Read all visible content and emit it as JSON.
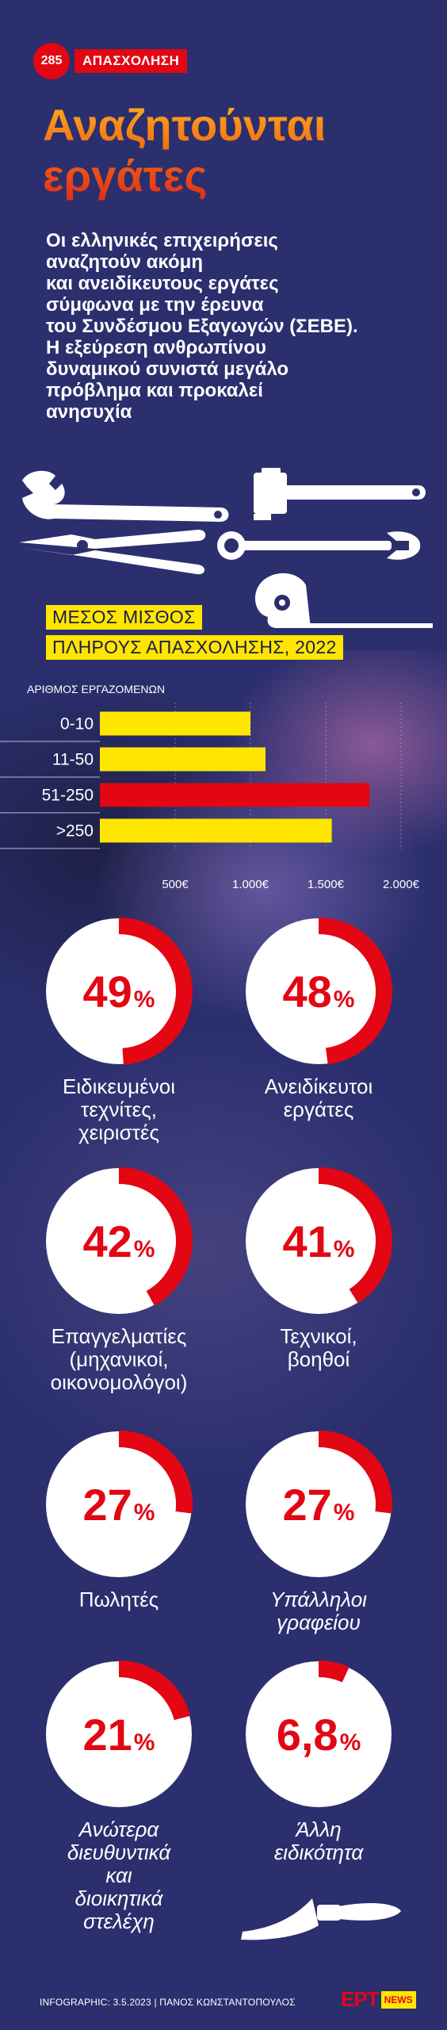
{
  "header": {
    "badge_number": "285",
    "badge_label": "ΑΠΑΣΧΟΛΗΣΗ",
    "title_line1": "Αναζητούνται",
    "title_line2": "εργάτες",
    "intro_lines": [
      "Οι ελληνικές επιχειρήσεις",
      "αναζητούν ακόμη",
      "και ανειδίκευτους εργάτες",
      "σύμφωνα με την έρευνα",
      "του Συνδέσμου Εξαγωγών (ΣΕΒΕ).",
      "Η εξεύρεση ανθρωπίνου",
      "δυναμικού συνιστά μεγάλο",
      "πρόβλημα και προκαλεί",
      "ανησυχία"
    ]
  },
  "icons": [
    "wrench-icon",
    "pipe-wrench-icon",
    "pliers-icon",
    "combination-wrench-icon",
    "tape-measure-icon",
    "putty-knife-icon"
  ],
  "colors": {
    "background": "#2b2f6e",
    "accent_red": "#e30613",
    "accent_yellow": "#ffe600"
  },
  "chart_data": [
    {
      "type": "bar",
      "title_line1": "ΜΕΣΟΣ ΜΙΣΘΟΣ",
      "title_line2": "ΠΛΗΡΟΥΣ ΑΠΑΣΧΟΛΗΣΗΣ, 2022",
      "ylabel": "ΑΡΙΘΜΟΣ ΕΡΓΑΖΟΜΕΝΩΝ",
      "orientation": "horizontal",
      "categories": [
        "0-10",
        "11-50",
        "51-250",
        ">250"
      ],
      "values": [
        1000,
        1100,
        1790,
        1540
      ],
      "highlight_index": 2,
      "xlim": [
        0,
        2000
      ],
      "xticks": [
        500,
        1000,
        1500,
        2000
      ],
      "xtick_labels": [
        "500€",
        "1.000€",
        "1.500€",
        "2.000€"
      ],
      "grid": true
    },
    {
      "type": "pie",
      "style": "donut-percent",
      "items": [
        {
          "value": 49,
          "display": "49",
          "label_lines": [
            "Ειδικευμένοι",
            "τεχνίτες,",
            "χειριστές"
          ]
        },
        {
          "value": 48,
          "display": "48",
          "label_lines": [
            "Ανειδίκευτοι",
            "εργάτες"
          ]
        },
        {
          "value": 42,
          "display": "42",
          "label_lines": [
            "Επαγγελματίες",
            "(μηχανικοί,",
            "οικονομολόγοι)"
          ]
        },
        {
          "value": 41,
          "display": "41",
          "label_lines": [
            "Τεχνικοί,",
            "βοηθοί"
          ]
        },
        {
          "value": 27,
          "display": "27",
          "label_lines": [
            "Πωλητές"
          ]
        },
        {
          "value": 27,
          "display": "27",
          "label_lines": [
            "Υπάλληλοι",
            "γραφείου"
          ]
        },
        {
          "value": 21,
          "display": "21",
          "label_lines": [
            "Ανώτερα",
            "διευθυντικά",
            "και",
            "διοικητικά",
            "στελέχη"
          ]
        },
        {
          "value": 6.8,
          "display": "6,8",
          "label_lines": [
            "Άλλη",
            "ειδικότητα"
          ]
        }
      ],
      "unit": "%"
    }
  ],
  "footer": {
    "credit": "INFOGRAPHIC: 3.5.2023 | ΠΑΝΟΣ ΚΩΝΣΤΑΝΤΟΠΟΥΛΟΣ",
    "logo_text": "ΕΡΤ",
    "logo_badge": "NEWS"
  }
}
